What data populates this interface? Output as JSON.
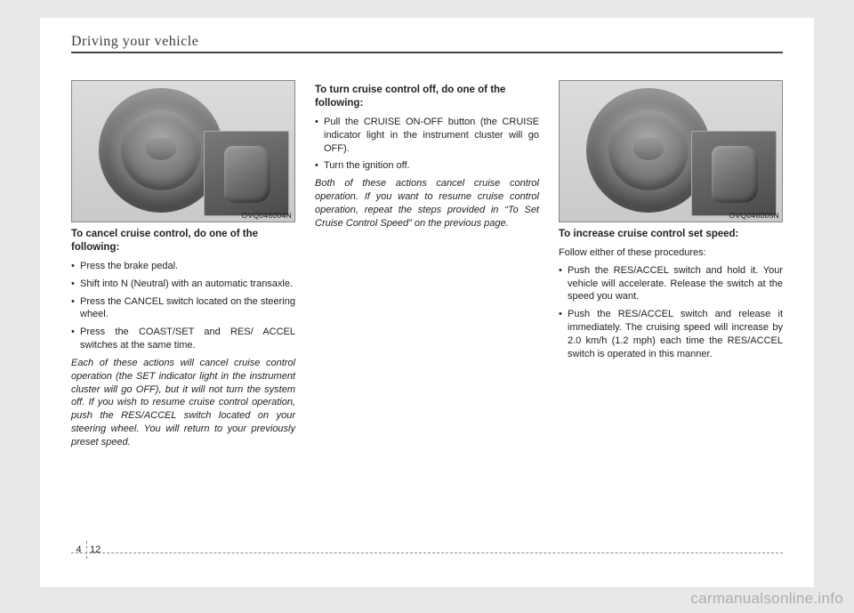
{
  "header": {
    "title": "Driving your vehicle"
  },
  "col1": {
    "figcode": "OVQ046004N",
    "heading": "To cancel cruise control, do one of the following:",
    "bullets": [
      "Press the brake pedal.",
      "Shift into N (Neutral) with an automatic transaxle.",
      "Press the CANCEL switch located on the steering wheel.",
      "Press the COAST/SET and RES/ ACCEL switches at the same time."
    ],
    "note": "Each of these actions will cancel cruise control operation (the SET indicator light in the instrument cluster will go OFF), but it will not turn the system off. If you wish to resume cruise control operation, push the RES/ACCEL switch located on your steering wheel. You will return to your previously preset speed."
  },
  "col2": {
    "heading": "To turn cruise control off, do one of the following:",
    "bullets": [
      "Pull the CRUISE ON-OFF button (the CRUISE indicator light in the instrument cluster will go OFF).",
      "Turn the ignition off."
    ],
    "note": "Both of these actions cancel cruise control operation. If you want to resume cruise control operation, repeat the steps provided in “To Set Cruise Control Speed” on the previous page."
  },
  "col3": {
    "figcode": "OVQ046005N",
    "heading": "To increase cruise control set speed:",
    "intro": "Follow either of these procedures:",
    "bullets": [
      "Push the RES/ACCEL switch and hold it. Your vehicle will accelerate. Release the switch at the speed you want.",
      "Push the RES/ACCEL switch and release it immediately. The cruising speed will increase by 2.0 km/h (1.2 mph) each time the RES/ACCEL switch is operated in this manner."
    ]
  },
  "footer": {
    "section": "4",
    "page": "12"
  },
  "watermark": "carmanualsonline.info"
}
